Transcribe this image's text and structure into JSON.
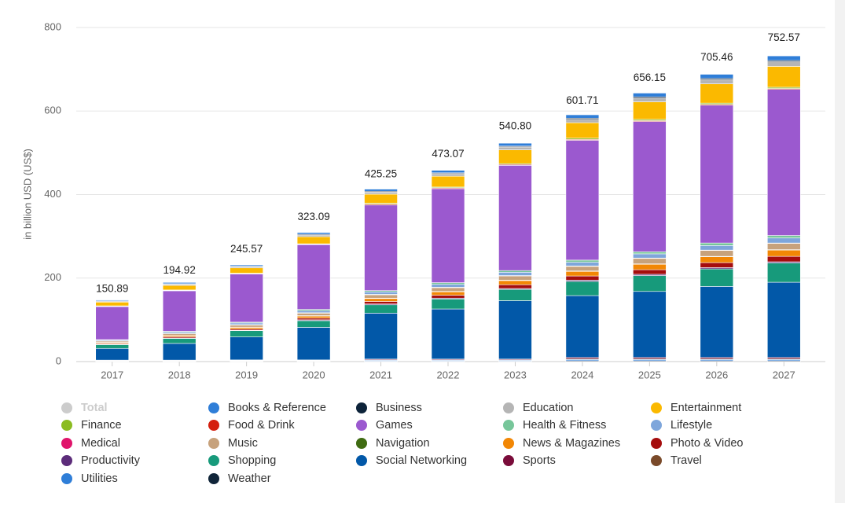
{
  "chart_data": {
    "type": "stacked_bar",
    "y_label": "in billion USD (US$)",
    "categories": [
      "2017",
      "2018",
      "2019",
      "2020",
      "2021",
      "2022",
      "2023",
      "2024",
      "2025",
      "2026",
      "2027"
    ],
    "ylim": [
      0,
      800
    ],
    "yticks": [
      0,
      200,
      400,
      600,
      800
    ],
    "grid": true,
    "legend": "bottom",
    "series": [
      {
        "name": "Total",
        "color": "#cccccc",
        "visible": false,
        "values": [
          150.89,
          194.92,
          245.57,
          323.09,
          425.25,
          473.07,
          540.8,
          601.71,
          656.15,
          705.46,
          752.57
        ],
        "value_labels": [
          "150.89",
          "194.92",
          "245.57",
          "323.09",
          "425.25",
          "473.07",
          "540.80",
          "601.71",
          "656.15",
          "705.46",
          "752.57"
        ]
      },
      {
        "name": "Books & Reference",
        "color": "#2f7ed8",
        "values": [
          2,
          3,
          3,
          4,
          5,
          6,
          7,
          8,
          9,
          10,
          11
        ]
      },
      {
        "name": "Business",
        "color": "#0d233a",
        "values": [
          1,
          1,
          1,
          2,
          2,
          2,
          2,
          3,
          3,
          3,
          3
        ]
      },
      {
        "name": "Education",
        "color": "#b5b5b5",
        "values": [
          2,
          3,
          3,
          4,
          5,
          6,
          7,
          8,
          9,
          10,
          11
        ]
      },
      {
        "name": "Entertainment",
        "color": "#fbb900",
        "values": [
          9,
          11,
          13,
          17,
          22,
          26,
          33,
          37,
          42,
          46,
          50
        ]
      },
      {
        "name": "Finance",
        "color": "#8bbc21",
        "values": [
          1,
          1,
          1,
          1,
          2,
          2,
          2,
          3,
          3,
          3,
          3
        ]
      },
      {
        "name": "Food & Drink",
        "color": "#d4200f",
        "values": [
          1,
          1,
          1,
          1,
          2,
          2,
          2,
          2,
          2,
          2,
          2
        ]
      },
      {
        "name": "Games",
        "color": "#9b59cf",
        "values": [
          79,
          97,
          115,
          155,
          205,
          225,
          252,
          287,
          312,
          330,
          350
        ]
      },
      {
        "name": "Health & Fitness",
        "color": "#77c69a",
        "values": [
          1,
          2,
          2,
          3,
          3,
          4,
          4,
          5,
          5,
          6,
          6
        ]
      },
      {
        "name": "Lifestyle",
        "color": "#7ea6db",
        "values": [
          2,
          3,
          4,
          5,
          6,
          7,
          8,
          9,
          10,
          11,
          12
        ]
      },
      {
        "name": "Medical",
        "color": "#e0146b",
        "values": [
          0.5,
          0.5,
          1,
          1,
          1,
          1,
          1,
          1,
          1,
          1,
          1
        ]
      },
      {
        "name": "Music",
        "color": "#c7a27c",
        "values": [
          3,
          4,
          5,
          6,
          8,
          9,
          10,
          11,
          13,
          14,
          15
        ]
      },
      {
        "name": "Navigation",
        "color": "#3f6b12",
        "values": [
          0.5,
          0.5,
          0.5,
          1,
          1,
          1,
          1,
          1,
          1,
          1,
          1
        ]
      },
      {
        "name": "News & Magazines",
        "color": "#f28705",
        "values": [
          2,
          3,
          4,
          5,
          7,
          8,
          10,
          11,
          13,
          14,
          15
        ]
      },
      {
        "name": "Photo & Video",
        "color": "#a50d0d",
        "values": [
          2,
          3,
          3,
          4,
          6,
          7,
          9,
          10,
          11,
          12,
          13
        ]
      },
      {
        "name": "Productivity",
        "color": "#5c2c7a",
        "values": [
          1,
          1,
          1,
          2,
          2,
          2,
          2,
          3,
          3,
          3,
          3
        ]
      },
      {
        "name": "Shopping",
        "color": "#179a7b",
        "values": [
          9,
          12,
          15,
          16,
          20,
          24,
          27,
          34,
          38,
          42,
          46
        ]
      },
      {
        "name": "Social Networking",
        "color": "#0258a8",
        "values": [
          28,
          40,
          55,
          78,
          110,
          120,
          140,
          148,
          158,
          170,
          180
        ]
      },
      {
        "name": "Sports",
        "color": "#7a0c3a",
        "values": [
          1,
          1,
          1,
          1,
          2,
          2,
          2,
          3,
          3,
          3,
          3
        ]
      },
      {
        "name": "Travel",
        "color": "#7a4a2a",
        "values": [
          0.5,
          0.5,
          1,
          1,
          1,
          1,
          1,
          2,
          2,
          2,
          2
        ]
      },
      {
        "name": "Utilities",
        "color": "#2f7ed8",
        "values": [
          1,
          1,
          1,
          1,
          2,
          2,
          2,
          3,
          3,
          3,
          3
        ]
      },
      {
        "name": "Weather",
        "color": "#102539",
        "values": [
          1,
          1,
          1,
          1,
          1,
          1,
          1,
          2,
          2,
          2,
          2
        ]
      }
    ]
  }
}
